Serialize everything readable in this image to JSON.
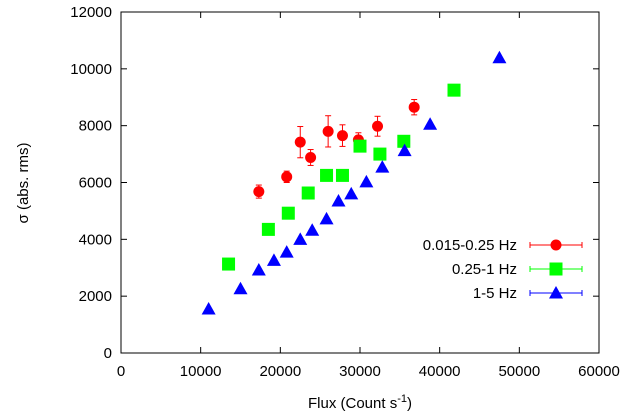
{
  "chart_data": {
    "type": "scatter",
    "title": "",
    "xlabel": "Flux (Count s",
    "xlabel_sup": "-1",
    "xlabel_close": ")",
    "ylabel": "σ (abs. rms)",
    "xlim": [
      0,
      60000
    ],
    "ylim": [
      0,
      12000
    ],
    "xticks": [
      "0",
      "10000",
      "20000",
      "30000",
      "40000",
      "50000",
      "60000"
    ],
    "yticks": [
      "0",
      "2000",
      "4000",
      "6000",
      "8000",
      "10000",
      "12000"
    ],
    "grid": false,
    "legend_position": "bottom-right",
    "series": [
      {
        "name": "0.015-0.25 Hz",
        "marker": "circle",
        "color": "#ff0000",
        "points": [
          {
            "x": 17300,
            "y": 5680,
            "err": 230
          },
          {
            "x": 20800,
            "y": 6200,
            "err": 200
          },
          {
            "x": 22500,
            "y": 7420,
            "err": 550
          },
          {
            "x": 23800,
            "y": 6880,
            "err": 280
          },
          {
            "x": 26000,
            "y": 7800,
            "err": 550
          },
          {
            "x": 27800,
            "y": 7650,
            "err": 380
          },
          {
            "x": 29800,
            "y": 7500,
            "err": 250
          },
          {
            "x": 32200,
            "y": 7980,
            "err": 350
          },
          {
            "x": 36800,
            "y": 8650,
            "err": 270
          }
        ]
      },
      {
        "name": "0.25-1 Hz",
        "marker": "square",
        "color": "#00ff00",
        "points": [
          {
            "x": 13500,
            "y": 3130
          },
          {
            "x": 18500,
            "y": 4350
          },
          {
            "x": 21000,
            "y": 4920
          },
          {
            "x": 23500,
            "y": 5630
          },
          {
            "x": 25800,
            "y": 6250
          },
          {
            "x": 27800,
            "y": 6250
          },
          {
            "x": 30000,
            "y": 7280
          },
          {
            "x": 32500,
            "y": 7000
          },
          {
            "x": 35500,
            "y": 7450
          },
          {
            "x": 41800,
            "y": 9250
          }
        ]
      },
      {
        "name": "1-5 Hz",
        "marker": "triangle",
        "color": "#0000ff",
        "points": [
          {
            "x": 11000,
            "y": 1550
          },
          {
            "x": 15000,
            "y": 2260
          },
          {
            "x": 17300,
            "y": 2920
          },
          {
            "x": 19200,
            "y": 3260
          },
          {
            "x": 20800,
            "y": 3550
          },
          {
            "x": 22500,
            "y": 4000
          },
          {
            "x": 24000,
            "y": 4320
          },
          {
            "x": 25800,
            "y": 4720
          },
          {
            "x": 27300,
            "y": 5350
          },
          {
            "x": 28900,
            "y": 5600
          },
          {
            "x": 30800,
            "y": 6020
          },
          {
            "x": 32800,
            "y": 6540
          },
          {
            "x": 35600,
            "y": 7120
          },
          {
            "x": 38800,
            "y": 8050
          },
          {
            "x": 47500,
            "y": 10390
          }
        ]
      }
    ]
  }
}
